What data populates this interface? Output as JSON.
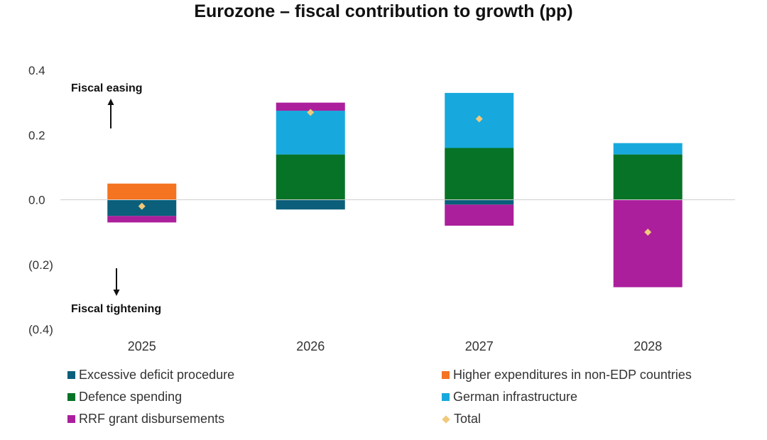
{
  "chart_data": {
    "type": "bar",
    "stacked": true,
    "title": "Eurozone – fiscal contribution to growth (pp)",
    "categories": [
      "2025",
      "2026",
      "2027",
      "2028"
    ],
    "ylim": [
      -0.4,
      0.4
    ],
    "yticks": [
      {
        "value": 0.4,
        "label": "0.4"
      },
      {
        "value": 0.2,
        "label": "0.2"
      },
      {
        "value": 0.0,
        "label": "0.0"
      },
      {
        "value": -0.2,
        "label": "(0.2)"
      },
      {
        "value": -0.4,
        "label": "(0.4)"
      }
    ],
    "grid": false,
    "series": [
      {
        "name": "Excessive deficit procedure",
        "color": "#0b5f7a",
        "values": [
          -0.05,
          -0.03,
          -0.015,
          0
        ]
      },
      {
        "name": "Higher expenditures in non-EDP countries",
        "color": "#f47421",
        "values": [
          0.05,
          0,
          0,
          0
        ]
      },
      {
        "name": "Defence spending",
        "color": "#077326",
        "values": [
          0,
          0.14,
          0.16,
          0.14
        ]
      },
      {
        "name": "German infrastructure",
        "color": "#17a9dd",
        "values": [
          0,
          0.135,
          0.17,
          0.035
        ]
      },
      {
        "name": "RRF grant disbursements",
        "color": "#ab1f9c",
        "values": [
          -0.02,
          0.025,
          -0.065,
          -0.27
        ]
      }
    ],
    "total": {
      "name": "Total",
      "color": "#f1c97a",
      "values": [
        -0.02,
        0.27,
        0.25,
        -0.1
      ]
    },
    "annotations": {
      "easing": "Fiscal easing",
      "tightening": "Fiscal tightening"
    },
    "legend_position": "bottom"
  }
}
